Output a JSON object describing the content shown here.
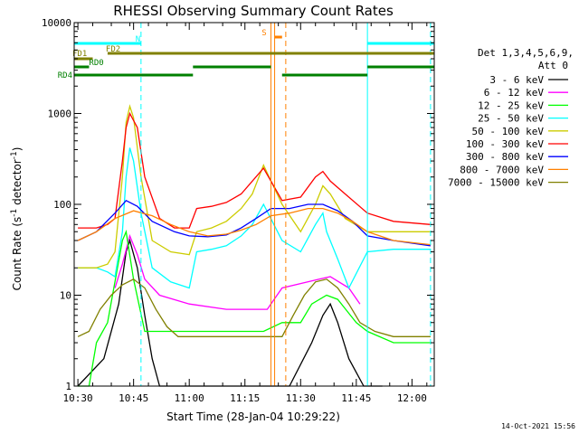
{
  "chart_data": {
    "type": "line",
    "title": "RHESSI Observing Summary Count Rates",
    "xlabel": "Start Time (28-Jan-04 10:29:22)",
    "ylabel": "Count Rate (s",
    "ylabel_sup": "-1",
    "ylabel_tail": " detector",
    "ylabel_sup2": "-1",
    "ylabel_end": ")",
    "x_scale": "time",
    "xlim": [
      "10:29",
      "12:06"
    ],
    "y_scale": "log",
    "ylim": [
      1,
      10000
    ],
    "x_ticks": [
      "10:30",
      "10:45",
      "11:00",
      "11:15",
      "11:30",
      "11:45",
      "12:00"
    ],
    "y_ticks": [
      "1",
      "10",
      "100",
      "1000",
      "10000"
    ],
    "legend_title_1": "Det 1,3,4,5,6,9,",
    "legend_title_2": "Att 0",
    "legend_position": "right",
    "timestamp": "14-Oct-2021 15:56",
    "series": [
      {
        "name": "3 - 6 keV",
        "color": "#000000",
        "points": [
          [
            "10:30",
            1
          ],
          [
            "10:37",
            2
          ],
          [
            "10:41",
            8
          ],
          [
            "10:43",
            30
          ],
          [
            "10:44",
            40
          ],
          [
            "10:46",
            20
          ],
          [
            "10:48",
            6
          ],
          [
            "10:50",
            2
          ],
          [
            "10:52",
            1
          ],
          [
            "11:18",
            1
          ],
          [
            "11:27",
            1
          ],
          [
            "11:33",
            3
          ],
          [
            "11:36",
            6
          ],
          [
            "11:38",
            8
          ],
          [
            "11:40",
            5
          ],
          [
            "11:43",
            2
          ],
          [
            "11:47",
            1
          ],
          [
            "11:52",
            1
          ]
        ]
      },
      {
        "name": "6 - 12 keV",
        "color": "#ff00ff",
        "points": [
          [
            "10:40",
            12
          ],
          [
            "10:42",
            22
          ],
          [
            "10:44",
            45
          ],
          [
            "10:46",
            28
          ],
          [
            "10:48",
            15
          ],
          [
            "10:52",
            10
          ],
          [
            "11:00",
            8
          ],
          [
            "11:10",
            7
          ],
          [
            "11:15",
            7
          ],
          [
            "11:21",
            7
          ],
          [
            "11:25",
            12
          ],
          [
            "11:35",
            15
          ],
          [
            "11:38",
            16
          ],
          [
            "11:43",
            12
          ],
          [
            "11:46",
            8
          ]
        ]
      },
      {
        "name": "12 - 25 keV",
        "color": "#00ff00",
        "points": [
          [
            "10:30",
            1
          ],
          [
            "10:33",
            1
          ],
          [
            "10:35",
            3
          ],
          [
            "10:38",
            5
          ],
          [
            "10:42",
            40
          ],
          [
            "10:43",
            50
          ],
          [
            "10:45",
            15
          ],
          [
            "10:48",
            4
          ],
          [
            "11:00",
            4
          ],
          [
            "11:10",
            4
          ],
          [
            "11:20",
            4
          ],
          [
            "11:25",
            5
          ],
          [
            "11:30",
            5
          ],
          [
            "11:33",
            8
          ],
          [
            "11:37",
            10
          ],
          [
            "11:40",
            9
          ],
          [
            "11:45",
            5
          ],
          [
            "11:48",
            4
          ],
          [
            "11:55",
            3
          ],
          [
            "12:05",
            3
          ]
        ]
      },
      {
        "name": "25 - 50 keV",
        "color": "#00ffff",
        "points": [
          [
            "10:30",
            20
          ],
          [
            "10:35",
            20
          ],
          [
            "10:38",
            18
          ],
          [
            "10:40",
            16
          ],
          [
            "10:42",
            50
          ],
          [
            "10:43",
            200
          ],
          [
            "10:44",
            420
          ],
          [
            "10:45",
            300
          ],
          [
            "10:47",
            80
          ],
          [
            "10:50",
            20
          ],
          [
            "10:55",
            14
          ],
          [
            "11:00",
            12
          ],
          [
            "11:02",
            30
          ],
          [
            "11:06",
            32
          ],
          [
            "11:10",
            35
          ],
          [
            "11:14",
            45
          ],
          [
            "11:17",
            60
          ],
          [
            "11:20",
            100
          ],
          [
            "11:25",
            40
          ],
          [
            "11:30",
            30
          ],
          [
            "11:34",
            60
          ],
          [
            "11:36",
            80
          ],
          [
            "11:37",
            50
          ],
          [
            "11:40",
            25
          ],
          [
            "11:43",
            12
          ],
          [
            "11:48",
            30
          ],
          [
            "11:55",
            32
          ],
          [
            "12:05",
            32
          ]
        ]
      },
      {
        "name": "50 - 100 keV",
        "color": "#cccc00",
        "points": [
          [
            "10:30",
            20
          ],
          [
            "10:35",
            20
          ],
          [
            "10:38",
            22
          ],
          [
            "10:40",
            30
          ],
          [
            "10:42",
            200
          ],
          [
            "10:43",
            800
          ],
          [
            "10:44",
            1200
          ],
          [
            "10:45",
            900
          ],
          [
            "10:47",
            200
          ],
          [
            "10:50",
            40
          ],
          [
            "10:55",
            30
          ],
          [
            "11:00",
            28
          ],
          [
            "11:02",
            50
          ],
          [
            "11:06",
            55
          ],
          [
            "11:10",
            65
          ],
          [
            "11:14",
            90
          ],
          [
            "11:17",
            130
          ],
          [
            "11:20",
            270
          ],
          [
            "11:25",
            100
          ],
          [
            "11:30",
            50
          ],
          [
            "11:34",
            100
          ],
          [
            "11:36",
            160
          ],
          [
            "11:38",
            130
          ],
          [
            "11:42",
            70
          ],
          [
            "11:48",
            50
          ],
          [
            "11:55",
            50
          ],
          [
            "12:05",
            50
          ]
        ]
      },
      {
        "name": "100 - 300 keV",
        "color": "#ff0000",
        "points": [
          [
            "10:30",
            55
          ],
          [
            "10:35",
            55
          ],
          [
            "10:38",
            60
          ],
          [
            "10:40",
            70
          ],
          [
            "10:42",
            300
          ],
          [
            "10:43",
            700
          ],
          [
            "10:44",
            1000
          ],
          [
            "10:46",
            700
          ],
          [
            "10:48",
            200
          ],
          [
            "10:52",
            70
          ],
          [
            "10:56",
            55
          ],
          [
            "11:00",
            55
          ],
          [
            "11:02",
            90
          ],
          [
            "11:06",
            95
          ],
          [
            "11:10",
            105
          ],
          [
            "11:14",
            130
          ],
          [
            "11:17",
            180
          ],
          [
            "11:20",
            250
          ],
          [
            "11:25",
            110
          ],
          [
            "11:30",
            120
          ],
          [
            "11:34",
            200
          ],
          [
            "11:36",
            230
          ],
          [
            "11:38",
            180
          ],
          [
            "11:42",
            130
          ],
          [
            "11:48",
            80
          ],
          [
            "11:55",
            65
          ],
          [
            "12:05",
            60
          ]
        ]
      },
      {
        "name": "300 - 800 keV",
        "color": "#0000ff",
        "points": [
          [
            "10:30",
            40
          ],
          [
            "10:35",
            50
          ],
          [
            "10:40",
            80
          ],
          [
            "10:43",
            110
          ],
          [
            "10:46",
            95
          ],
          [
            "10:50",
            65
          ],
          [
            "10:56",
            50
          ],
          [
            "11:00",
            45
          ],
          [
            "11:05",
            44
          ],
          [
            "11:10",
            46
          ],
          [
            "11:14",
            55
          ],
          [
            "11:18",
            70
          ],
          [
            "11:22",
            90
          ],
          [
            "11:27",
            90
          ],
          [
            "11:32",
            100
          ],
          [
            "11:36",
            100
          ],
          [
            "11:40",
            85
          ],
          [
            "11:44",
            65
          ],
          [
            "11:48",
            45
          ],
          [
            "11:55",
            40
          ],
          [
            "12:05",
            35
          ]
        ]
      },
      {
        "name": "800 - 7000 keV",
        "color": "#ff8000",
        "points": [
          [
            "10:30",
            40
          ],
          [
            "10:35",
            50
          ],
          [
            "10:40",
            70
          ],
          [
            "10:45",
            85
          ],
          [
            "10:50",
            75
          ],
          [
            "10:55",
            60
          ],
          [
            "11:00",
            50
          ],
          [
            "11:05",
            45
          ],
          [
            "11:10",
            47
          ],
          [
            "11:14",
            52
          ],
          [
            "11:18",
            60
          ],
          [
            "11:22",
            75
          ],
          [
            "11:27",
            80
          ],
          [
            "11:32",
            90
          ],
          [
            "11:36",
            90
          ],
          [
            "11:40",
            80
          ],
          [
            "11:44",
            65
          ],
          [
            "11:48",
            50
          ],
          [
            "11:55",
            40
          ],
          [
            "12:05",
            36
          ]
        ]
      },
      {
        "name": "7000 - 15000 keV",
        "color": "#808000",
        "points": [
          [
            "10:30",
            3.5
          ],
          [
            "10:33",
            4
          ],
          [
            "10:36",
            7
          ],
          [
            "10:39",
            10
          ],
          [
            "10:42",
            13
          ],
          [
            "10:45",
            15
          ],
          [
            "10:48",
            12
          ],
          [
            "10:51",
            7
          ],
          [
            "10:54",
            4.5
          ],
          [
            "10:57",
            3.5
          ],
          [
            "11:00",
            3.5
          ],
          [
            "11:10",
            3.5
          ],
          [
            "11:20",
            3.5
          ],
          [
            "11:25",
            3.5
          ],
          [
            "11:28",
            6
          ],
          [
            "11:31",
            10
          ],
          [
            "11:34",
            14
          ],
          [
            "11:37",
            15
          ],
          [
            "11:40",
            12
          ],
          [
            "11:43",
            8
          ],
          [
            "11:46",
            5
          ],
          [
            "11:50",
            4
          ],
          [
            "11:55",
            3.5
          ],
          [
            "12:05",
            3.5
          ]
        ]
      }
    ],
    "flag_bars": [
      {
        "label": "N",
        "color": "#00ffff",
        "label_at": "10:46",
        "spans": [
          [
            "10:29",
            "10:47"
          ],
          [
            "11:48",
            "12:06"
          ]
        ]
      },
      {
        "label": "S",
        "color": "#ff8000",
        "label_at": "11:20",
        "spans": [
          [
            "11:23",
            "11:25"
          ]
        ]
      },
      {
        "label": "FD1",
        "color": "#808000",
        "label_at": "10:29",
        "spans": [
          [
            "10:29",
            "10:34"
          ]
        ]
      },
      {
        "label": "FD2",
        "color": "#808000",
        "label_at": "10:38",
        "spans": [
          [
            "10:38",
            "12:06"
          ]
        ]
      },
      {
        "label": "RD0",
        "color": "#008000",
        "label_at": "10:33",
        "spans": [
          [
            "10:29",
            "10:33"
          ],
          [
            "11:01",
            "11:22"
          ],
          [
            "11:48",
            "12:06"
          ]
        ]
      },
      {
        "label": "RD4",
        "color": "#008000",
        "label_at": "10:29",
        "spans": [
          [
            "10:29",
            "11:01"
          ],
          [
            "11:25",
            "11:48"
          ]
        ]
      }
    ],
    "vlines": [
      {
        "t": "10:29",
        "color": "#00ffff",
        "style": "solid"
      },
      {
        "t": "10:47",
        "color": "#00ffff",
        "style": "dashed"
      },
      {
        "t": "11:22",
        "color": "#ff8000",
        "style": "solid"
      },
      {
        "t": "11:23",
        "color": "#ff8000",
        "style": "solid"
      },
      {
        "t": "11:26",
        "color": "#ff8000",
        "style": "dashed"
      },
      {
        "t": "11:48",
        "color": "#00ffff",
        "style": "solid"
      },
      {
        "t": "12:05",
        "color": "#00ffff",
        "style": "dashed"
      }
    ]
  }
}
